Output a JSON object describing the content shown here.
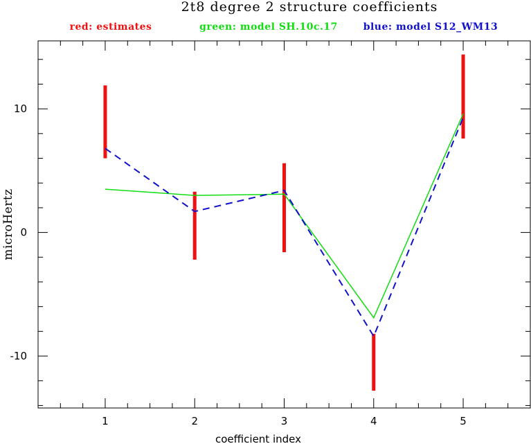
{
  "chart_data": {
    "type": "line",
    "title": "2t8 degree 2 structure coefficients",
    "xlabel": "coefficient index",
    "ylabel": "microHertz",
    "xlim": [
      0.25,
      5.75
    ],
    "ylim": [
      -14.2,
      15.5
    ],
    "x_ticks": [
      1,
      2,
      3,
      4,
      5
    ],
    "y_ticks": [
      -10,
      0,
      10
    ],
    "x_tick_labels": [
      "1",
      "2",
      "3",
      "4",
      "5"
    ],
    "y_tick_labels": [
      "-10",
      "0",
      "10"
    ],
    "legend": {
      "estimates": "red: estimates",
      "model_green": "green: model SH.10c.17",
      "model_blue": "blue: model S12_WM13"
    },
    "colors": {
      "estimates": "#ee1111",
      "model_green": "#11dd11",
      "model_blue": "#1111cc"
    },
    "estimates": [
      {
        "x": 1,
        "low": 6.0,
        "high": 11.9
      },
      {
        "x": 2,
        "low": -2.2,
        "high": 3.3
      },
      {
        "x": 3,
        "low": -1.6,
        "high": 5.6
      },
      {
        "x": 4,
        "low": -12.8,
        "high": -8.2
      },
      {
        "x": 5,
        "low": 7.6,
        "high": 14.4
      }
    ],
    "series": [
      {
        "key": "model_green",
        "x": [
          1,
          2,
          3,
          4,
          5
        ],
        "values": [
          3.5,
          3.0,
          3.1,
          -6.9,
          9.6
        ],
        "dash": "solid"
      },
      {
        "key": "model_blue",
        "x": [
          1,
          2,
          3,
          4,
          5
        ],
        "values": [
          6.8,
          1.7,
          3.4,
          -8.4,
          9.3
        ],
        "dash": "dashed"
      }
    ]
  }
}
